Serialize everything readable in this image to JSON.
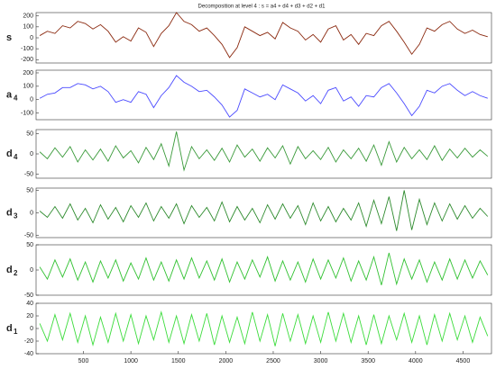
{
  "chart_data": [
    {
      "type": "line",
      "title": "Decomposition at level 4 : s = a4 + d4 + d3 + d2 + d1",
      "ylabel": "s",
      "color": "#8b2a10",
      "x": [
        40,
        120,
        200,
        280,
        360,
        440,
        520,
        600,
        680,
        760,
        840,
        920,
        1000,
        1080,
        1160,
        1240,
        1320,
        1400,
        1480,
        1560,
        1640,
        1720,
        1800,
        1880,
        1960,
        2040,
        2120,
        2200,
        2280,
        2360,
        2440,
        2520,
        2600,
        2680,
        2760,
        2840,
        2920,
        3000,
        3080,
        3160,
        3240,
        3320,
        3400,
        3480,
        3560,
        3640,
        3720,
        3800,
        3880,
        3960,
        4040,
        4120,
        4200,
        4280,
        4360,
        4440,
        4520,
        4600,
        4680,
        4760
      ],
      "values": [
        20,
        60,
        40,
        110,
        90,
        150,
        130,
        80,
        120,
        60,
        -40,
        10,
        -30,
        90,
        50,
        -80,
        40,
        110,
        230,
        150,
        120,
        60,
        90,
        20,
        -60,
        -180,
        -90,
        100,
        60,
        20,
        50,
        -10,
        140,
        90,
        60,
        -20,
        30,
        -40,
        80,
        110,
        -20,
        30,
        -60,
        40,
        20,
        110,
        150,
        60,
        -40,
        -150,
        -60,
        90,
        60,
        120,
        150,
        80,
        40,
        70,
        30,
        10
      ],
      "xlim": [
        1,
        4800
      ],
      "ylim": [
        -230,
        230
      ],
      "yticks": [
        -200,
        -100,
        0,
        100,
        200
      ]
    },
    {
      "type": "line",
      "ylabel": "a",
      "ylabel_sub": "4",
      "color": "#4a4aff",
      "x": [
        40,
        120,
        200,
        280,
        360,
        440,
        520,
        600,
        680,
        760,
        840,
        920,
        1000,
        1080,
        1160,
        1240,
        1320,
        1400,
        1480,
        1560,
        1640,
        1720,
        1800,
        1880,
        1960,
        2040,
        2120,
        2200,
        2280,
        2360,
        2440,
        2520,
        2600,
        2680,
        2760,
        2840,
        2920,
        3000,
        3080,
        3160,
        3240,
        3320,
        3400,
        3480,
        3560,
        3640,
        3720,
        3800,
        3880,
        3960,
        4040,
        4120,
        4200,
        4280,
        4360,
        4440,
        4520,
        4600,
        4680,
        4760
      ],
      "values": [
        10,
        40,
        50,
        90,
        90,
        120,
        110,
        80,
        100,
        60,
        -20,
        0,
        -20,
        60,
        40,
        -60,
        30,
        90,
        180,
        130,
        100,
        60,
        70,
        20,
        -40,
        -130,
        -80,
        80,
        50,
        20,
        40,
        0,
        110,
        80,
        50,
        -10,
        30,
        -30,
        70,
        90,
        -10,
        20,
        -50,
        30,
        20,
        90,
        120,
        50,
        -30,
        -120,
        -50,
        70,
        50,
        100,
        120,
        70,
        30,
        60,
        30,
        10
      ],
      "xlim": [
        1,
        4800
      ],
      "ylim": [
        -150,
        220
      ],
      "yticks": [
        -100,
        0,
        100,
        200
      ]
    },
    {
      "type": "line",
      "ylabel": "d",
      "ylabel_sub": "4",
      "color": "#3a9a3a",
      "x": [
        40,
        120,
        200,
        280,
        360,
        440,
        520,
        600,
        680,
        760,
        840,
        920,
        1000,
        1080,
        1160,
        1240,
        1320,
        1400,
        1480,
        1560,
        1640,
        1720,
        1800,
        1880,
        1960,
        2040,
        2120,
        2200,
        2280,
        2360,
        2440,
        2520,
        2600,
        2680,
        2760,
        2840,
        2920,
        3000,
        3080,
        3160,
        3240,
        3320,
        3400,
        3480,
        3560,
        3640,
        3720,
        3800,
        3880,
        3960,
        4040,
        4120,
        4200,
        4280,
        4360,
        4440,
        4520,
        4600,
        4680,
        4760
      ],
      "values": [
        5,
        -12,
        15,
        -8,
        18,
        -20,
        10,
        -15,
        12,
        -18,
        20,
        -10,
        8,
        -22,
        16,
        -14,
        25,
        -30,
        55,
        -40,
        18,
        -12,
        10,
        -16,
        14,
        -20,
        22,
        -8,
        12,
        -18,
        15,
        -10,
        20,
        -25,
        18,
        -12,
        8,
        -14,
        16,
        -20,
        10,
        -12,
        14,
        -18,
        22,
        -28,
        30,
        -20,
        16,
        -12,
        10,
        -14,
        20,
        -16,
        12,
        -10,
        14,
        -8,
        10,
        -6
      ],
      "xlim": [
        1,
        4800
      ],
      "ylim": [
        -60,
        60
      ],
      "yticks": [
        -50,
        0,
        50
      ]
    },
    {
      "type": "line",
      "ylabel": "d",
      "ylabel_sub": "3",
      "color": "#2e8b2e",
      "x": [
        40,
        120,
        200,
        280,
        360,
        440,
        520,
        600,
        680,
        760,
        840,
        920,
        1000,
        1080,
        1160,
        1240,
        1320,
        1400,
        1480,
        1560,
        1640,
        1720,
        1800,
        1880,
        1960,
        2040,
        2120,
        2200,
        2280,
        2360,
        2440,
        2520,
        2600,
        2680,
        2760,
        2840,
        2920,
        3000,
        3080,
        3160,
        3240,
        3320,
        3400,
        3480,
        3560,
        3640,
        3720,
        3800,
        3880,
        3960,
        4040,
        4120,
        4200,
        4280,
        4360,
        4440,
        4520,
        4600,
        4680,
        4760
      ],
      "values": [
        4,
        -10,
        14,
        -12,
        20,
        -16,
        10,
        -22,
        18,
        -14,
        12,
        -20,
        16,
        -10,
        22,
        -18,
        14,
        -12,
        20,
        -24,
        16,
        -10,
        12,
        -18,
        24,
        -20,
        14,
        -16,
        10,
        -22,
        18,
        -14,
        20,
        -12,
        16,
        -26,
        22,
        -18,
        14,
        -20,
        10,
        -16,
        22,
        -30,
        28,
        -24,
        36,
        -40,
        50,
        -38,
        30,
        -26,
        22,
        -18,
        20,
        -14,
        16,
        -12,
        10,
        -8
      ],
      "xlim": [
        1,
        4800
      ],
      "ylim": [
        -55,
        55
      ],
      "yticks": [
        -50,
        0,
        50
      ]
    },
    {
      "type": "line",
      "ylabel": "d",
      "ylabel_sub": "2",
      "color": "#33c233",
      "x": [
        40,
        120,
        200,
        280,
        360,
        440,
        520,
        600,
        680,
        760,
        840,
        920,
        1000,
        1080,
        1160,
        1240,
        1320,
        1400,
        1480,
        1560,
        1640,
        1720,
        1800,
        1880,
        1960,
        2040,
        2120,
        2200,
        2280,
        2360,
        2440,
        2520,
        2600,
        2680,
        2760,
        2840,
        2920,
        3000,
        3080,
        3160,
        3240,
        3320,
        3400,
        3480,
        3560,
        3640,
        3720,
        3800,
        3880,
        3960,
        4040,
        4120,
        4200,
        4280,
        4360,
        4440,
        4520,
        4600,
        4680,
        4760
      ],
      "values": [
        6,
        -18,
        20,
        -14,
        22,
        -20,
        16,
        -24,
        18,
        -16,
        20,
        -22,
        14,
        -18,
        24,
        -20,
        16,
        -22,
        20,
        -18,
        24,
        -16,
        18,
        -20,
        22,
        -24,
        16,
        -18,
        20,
        -14,
        26,
        -22,
        18,
        -20,
        16,
        -24,
        22,
        -18,
        20,
        -16,
        24,
        -22,
        18,
        -20,
        26,
        -30,
        34,
        -28,
        22,
        -18,
        20,
        -24,
        16,
        -20,
        22,
        -18,
        20,
        -16,
        18,
        -10
      ],
      "xlim": [
        1,
        4800
      ],
      "ylim": [
        -50,
        50
      ],
      "yticks": [
        -50,
        0,
        50
      ]
    },
    {
      "type": "line",
      "ylabel": "d",
      "ylabel_sub": "1",
      "color": "#3ddc3d",
      "x": [
        40,
        120,
        200,
        280,
        360,
        440,
        520,
        600,
        680,
        760,
        840,
        920,
        1000,
        1080,
        1160,
        1240,
        1320,
        1400,
        1480,
        1560,
        1640,
        1720,
        1800,
        1880,
        1960,
        2040,
        2120,
        2200,
        2280,
        2360,
        2440,
        2520,
        2600,
        2680,
        2760,
        2840,
        2920,
        3000,
        3080,
        3160,
        3240,
        3320,
        3400,
        3480,
        3560,
        3640,
        3720,
        3800,
        3880,
        3960,
        4040,
        4120,
        4200,
        4280,
        4360,
        4440,
        4520,
        4600,
        4680,
        4760
      ],
      "values": [
        8,
        -20,
        22,
        -18,
        24,
        -22,
        20,
        -26,
        18,
        -22,
        24,
        -20,
        22,
        -24,
        20,
        -18,
        26,
        -22,
        20,
        -24,
        22,
        -20,
        24,
        -26,
        20,
        -22,
        18,
        -24,
        26,
        -20,
        22,
        -28,
        24,
        -20,
        22,
        -24,
        20,
        -22,
        26,
        -20,
        24,
        -22,
        20,
        -26,
        22,
        -24,
        20,
        -18,
        24,
        -22,
        20,
        -26,
        22,
        -20,
        24,
        -18,
        20,
        -22,
        18,
        -12
      ],
      "xlim": [
        1,
        4800
      ],
      "ylim": [
        -40,
        40
      ],
      "yticks": [
        -40,
        -20,
        0,
        20,
        40
      ],
      "xticks": [
        500,
        1000,
        1500,
        2000,
        2500,
        3000,
        3500,
        4000,
        4500
      ]
    }
  ]
}
